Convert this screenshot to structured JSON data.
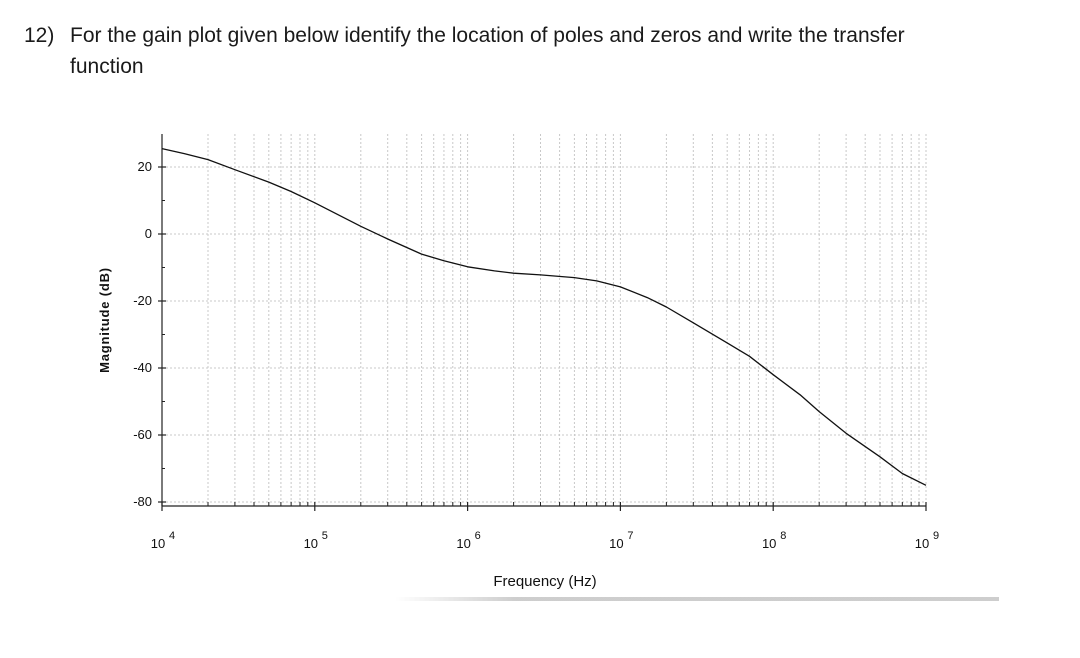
{
  "question": {
    "number": "12)",
    "text_line1": "For the gain plot given below identify the location of poles and zeros and write the transfer",
    "text_line2": "function"
  },
  "colors": {
    "curve": "#111111",
    "grid": "#c8c8c8",
    "axis": "#222222"
  },
  "chart_data": {
    "type": "line",
    "title": "",
    "xlabel": "Frequency (Hz)",
    "ylabel": "Magnitude (dB)",
    "x_scale": "log",
    "xlim": [
      10000,
      1000000000
    ],
    "ylim": [
      -80,
      30
    ],
    "grid": true,
    "x_ticks": [
      {
        "value": 10000,
        "base": "10",
        "exp": "4"
      },
      {
        "value": 100000,
        "base": "10",
        "exp": "5"
      },
      {
        "value": 1000000,
        "base": "10",
        "exp": "6"
      },
      {
        "value": 10000000,
        "base": "10",
        "exp": "7"
      },
      {
        "value": 100000000,
        "base": "10",
        "exp": "8"
      },
      {
        "value": 1000000000,
        "base": "10",
        "exp": "9"
      }
    ],
    "y_ticks": [
      {
        "value": 20,
        "label": "20"
      },
      {
        "value": 0,
        "label": "0"
      },
      {
        "value": -20,
        "label": "-20"
      },
      {
        "value": -40,
        "label": "-40"
      },
      {
        "value": -60,
        "label": "-60"
      },
      {
        "value": -80,
        "label": "-80"
      }
    ],
    "series": [
      {
        "x": [
          10000,
          14000,
          20000,
          30000,
          50000,
          70000,
          100000,
          150000,
          200000,
          300000,
          500000,
          700000,
          1000000,
          1500000,
          2000000,
          3000000,
          5000000,
          7000000,
          10000000,
          15000000,
          20000000,
          30000000,
          50000000,
          70000000,
          100000000,
          150000000,
          200000000,
          300000000,
          500000000,
          700000000,
          1000000000
        ],
        "y": [
          25.5,
          24.0,
          22.2,
          19.2,
          15.5,
          12.7,
          9.3,
          5.2,
          2.3,
          -1.5,
          -6.0,
          -8.0,
          -9.8,
          -11.0,
          -11.7,
          -12.2,
          -13.0,
          -14.0,
          -15.8,
          -19.0,
          -21.8,
          -26.5,
          -32.5,
          -36.5,
          -42.0,
          -48.0,
          -53.0,
          -59.5,
          -66.5,
          -71.5,
          -75.0
        ]
      }
    ]
  }
}
